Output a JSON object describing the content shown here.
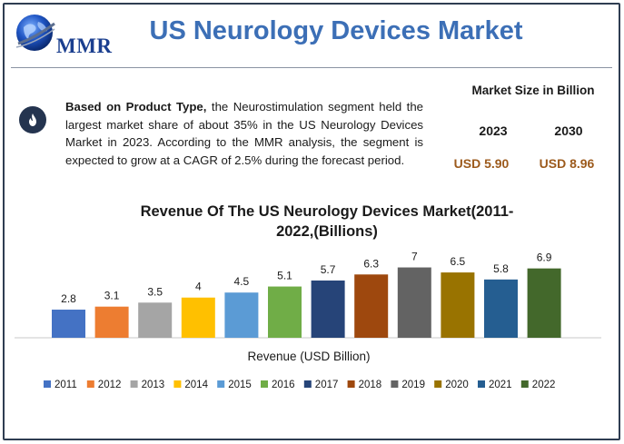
{
  "logo": {
    "text": "MMR"
  },
  "header": {
    "title": "US Neurology Devices Market"
  },
  "info": {
    "icon": "flame-icon",
    "lead": "Based on Product Type,",
    "body": " the Neurostimulation segment held the largest market share of about 35% in the US Neurology Devices Market in 2023. According to the MMR analysis, the segment is expected to grow at a CAGR of 2.5% during the forecast period."
  },
  "market_size": {
    "title": "Market Size in Billion",
    "year_a": "2023",
    "year_b": "2030",
    "value_a": "USD 5.90",
    "value_b": "USD 8.96"
  },
  "chart_data": {
    "type": "bar",
    "title": "Revenue Of The US Neurology Devices Market(2011-2022,(Billions)",
    "xlabel": "Revenue (USD Billion)",
    "ylabel": "",
    "ylim": [
      0,
      7.5
    ],
    "grid": false,
    "legend": "bottom",
    "categories": [
      "2011",
      "2012",
      "2013",
      "2014",
      "2015",
      "2016",
      "2017",
      "2018",
      "2019",
      "2020",
      "2021",
      "2022"
    ],
    "values": [
      2.8,
      3.1,
      3.5,
      4,
      4.5,
      5.1,
      5.7,
      6.3,
      7,
      6.5,
      5.8,
      6.9
    ],
    "value_labels": [
      "2.8",
      "3.1",
      "3.5",
      "4",
      "4.5",
      "5.1",
      "5.7",
      "6.3",
      "7",
      "6.5",
      "5.8",
      "6.9"
    ],
    "colors": [
      "#4472c4",
      "#ed7d31",
      "#a5a5a5",
      "#ffc000",
      "#5b9bd5",
      "#70ad47",
      "#264478",
      "#9e480e",
      "#636363",
      "#997300",
      "#255e91",
      "#43682b"
    ]
  }
}
